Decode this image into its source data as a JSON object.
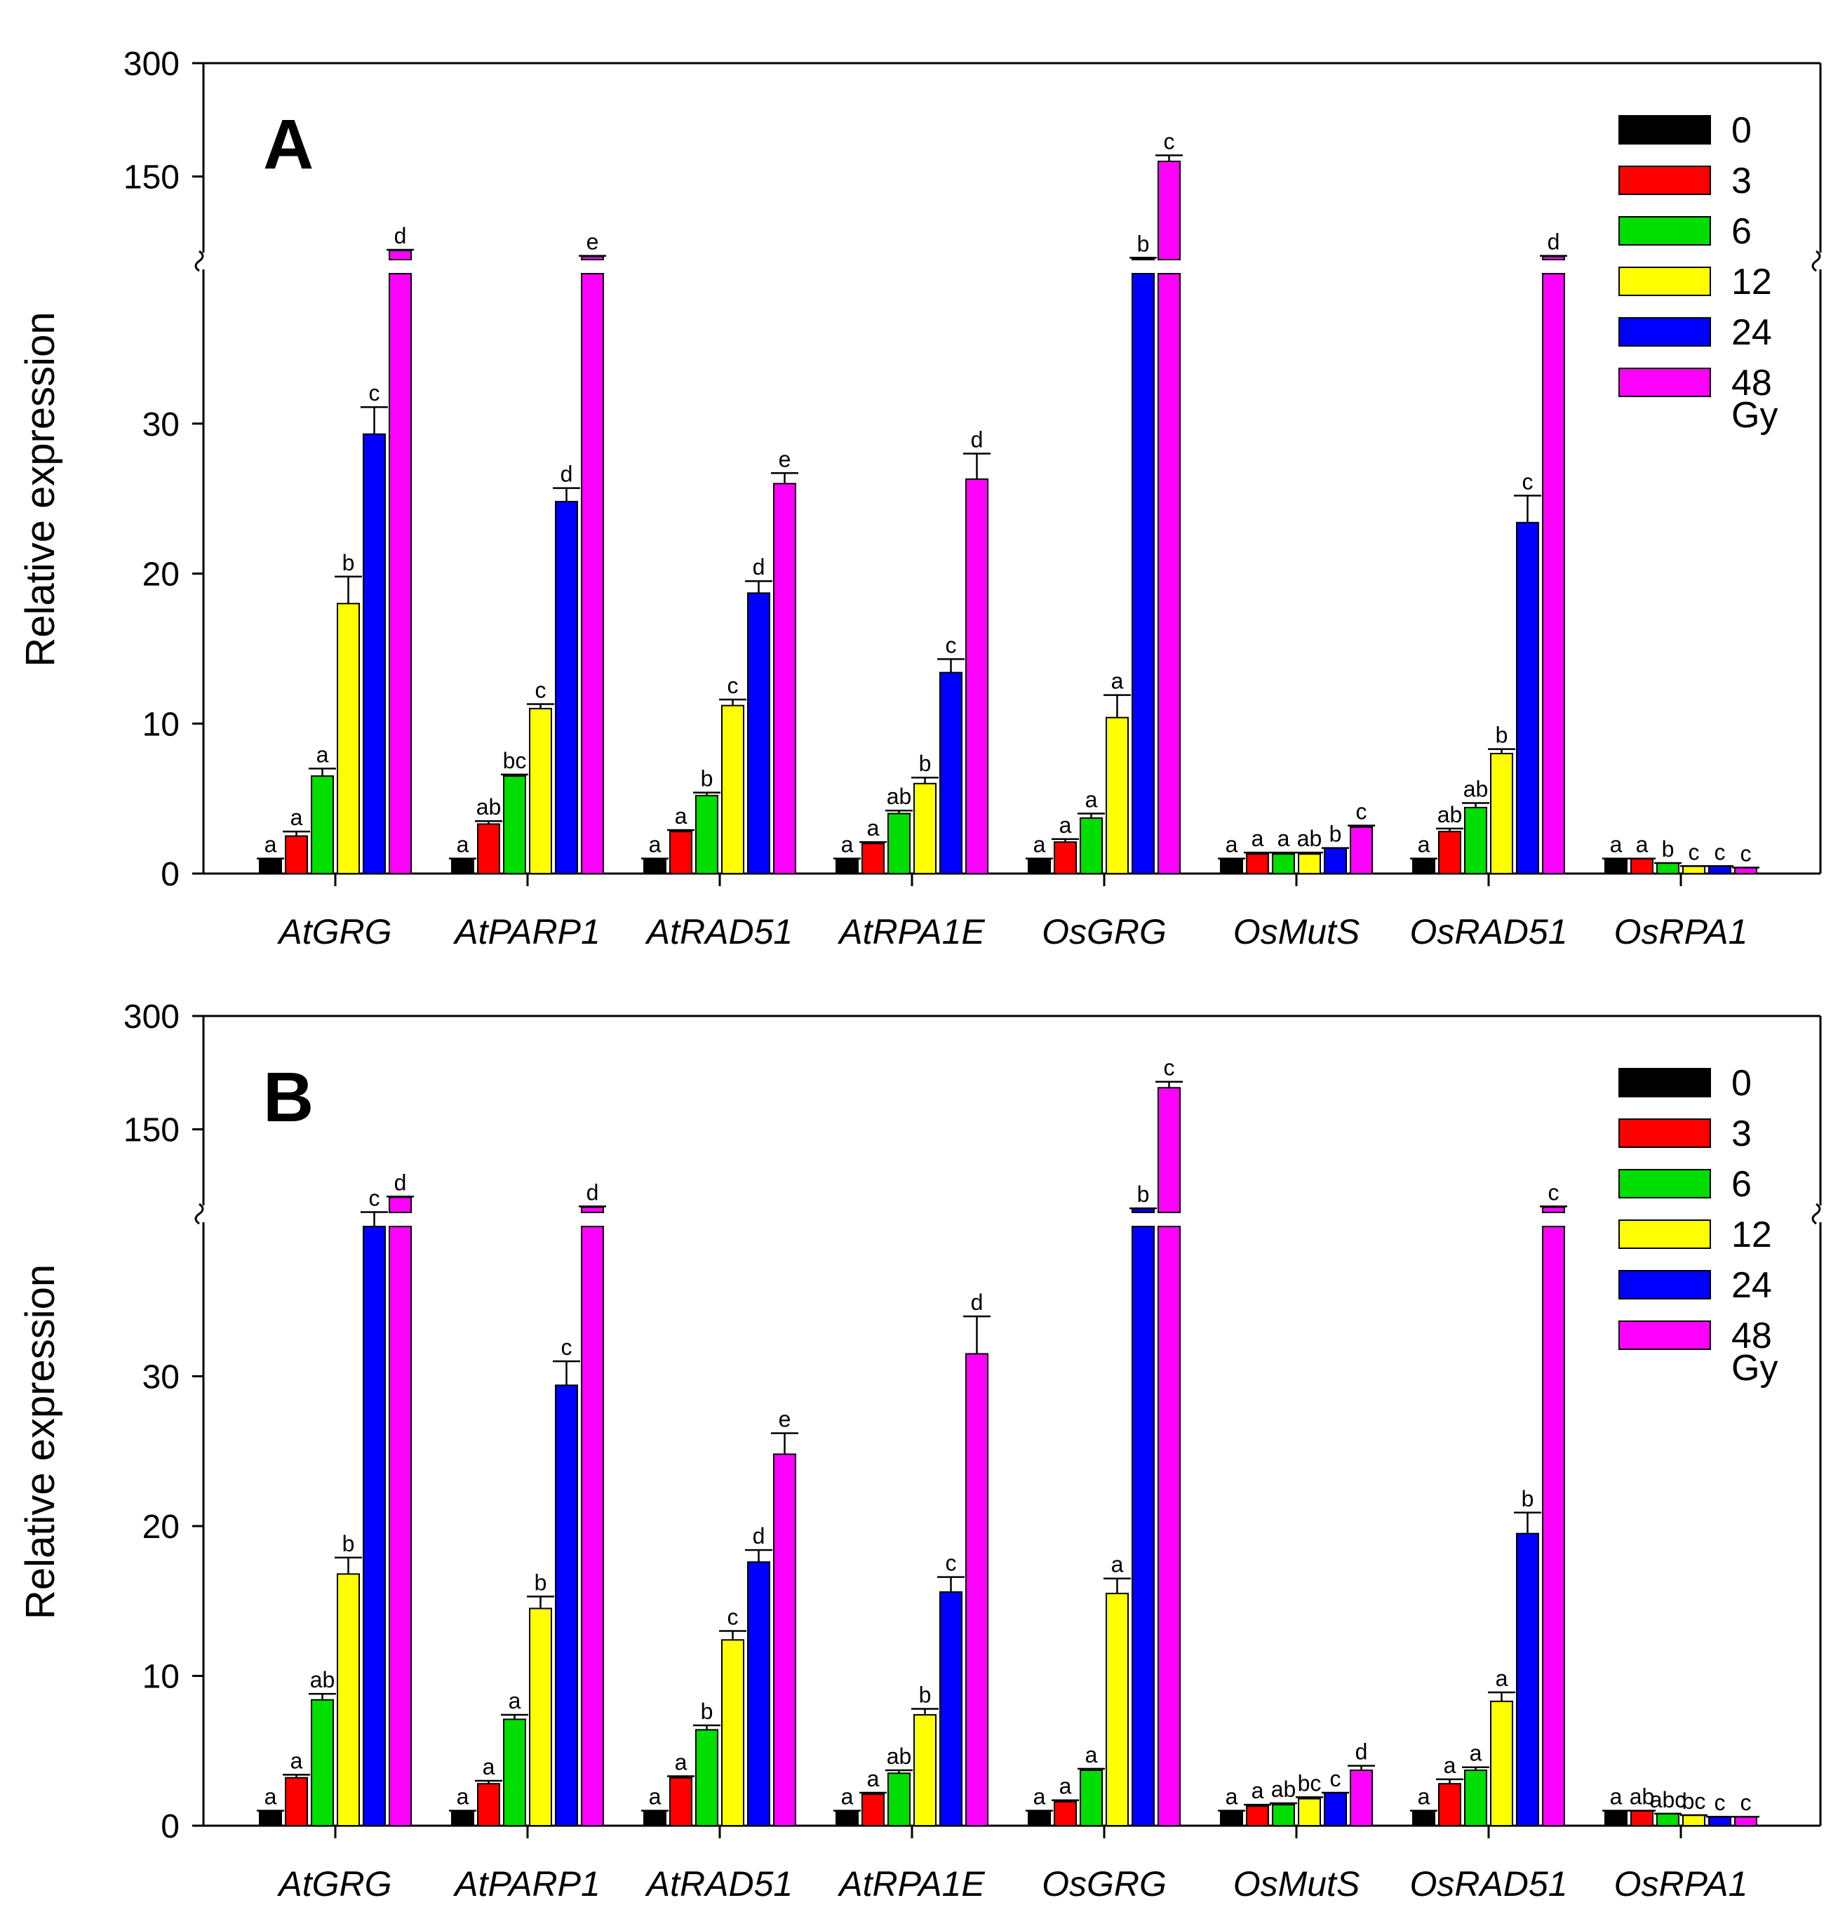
{
  "chart_data": [
    {
      "type": "bar",
      "panel_label": "A",
      "ylabel": "Relative expression",
      "xlabel": "",
      "axis_break": true,
      "lower_segment": {
        "range": [
          0,
          40
        ],
        "ticks": [
          "0",
          "10",
          "20",
          "30"
        ]
      },
      "upper_segment": {
        "range": [
          40,
          300
        ],
        "ticks": [
          "150",
          "300"
        ]
      },
      "categories": [
        "AtGRG",
        "AtPARP1",
        "AtRAD51",
        "AtRPA1E",
        "OsGRG",
        "OsMutS",
        "OsRAD51",
        "OsRPA1"
      ],
      "legend": {
        "title_suffix": "Gy",
        "entries": [
          "0",
          "3",
          "6",
          "12",
          "24",
          "48"
        ],
        "position": "top-right"
      },
      "series": [
        {
          "name": "0",
          "color": "#000000",
          "values": [
            1,
            1,
            1,
            1,
            1,
            1,
            1,
            1
          ],
          "errors": [
            0,
            0,
            0,
            0,
            0,
            0,
            0,
            0
          ],
          "letters": [
            "a",
            "a",
            "a",
            "a",
            "a",
            "a",
            "a",
            "a"
          ]
        },
        {
          "name": "3",
          "color": "#ff0000",
          "values": [
            2.5,
            3.3,
            2.8,
            2.0,
            2.1,
            1.3,
            2.8,
            1.0
          ],
          "errors": [
            0.3,
            0.2,
            0.1,
            0.1,
            0.2,
            0.1,
            0.2,
            0
          ],
          "letters": [
            "a",
            "ab",
            "a",
            "a",
            "a",
            "a",
            "ab",
            "a"
          ]
        },
        {
          "name": "6",
          "color": "#00dd00",
          "values": [
            6.5,
            6.5,
            5.2,
            4.0,
            3.7,
            1.3,
            4.4,
            0.7
          ],
          "errors": [
            0.5,
            0.1,
            0.2,
            0.2,
            0.3,
            0.1,
            0.3,
            0
          ],
          "letters": [
            "a",
            "bc",
            "b",
            "ab",
            "a",
            "a",
            "ab",
            "b"
          ]
        },
        {
          "name": "12",
          "color": "#ffff00",
          "values": [
            18.0,
            11.0,
            11.2,
            6.0,
            10.4,
            1.3,
            8.0,
            0.5
          ],
          "errors": [
            1.8,
            0.3,
            0.4,
            0.4,
            1.5,
            0.1,
            0.3,
            0
          ],
          "letters": [
            "b",
            "c",
            "c",
            "b",
            "a",
            "ab",
            "b",
            "c"
          ]
        },
        {
          "name": "24",
          "color": "#0000ff",
          "values": [
            29.3,
            24.8,
            18.7,
            13.4,
            42.0,
            1.7,
            23.4,
            0.5
          ],
          "errors": [
            1.8,
            0.9,
            0.8,
            0.9,
            0.5,
            0,
            1.8,
            0
          ],
          "letters": [
            "c",
            "d",
            "d",
            "c",
            "b",
            "b",
            "c",
            "c"
          ]
        },
        {
          "name": "48",
          "color": "#ff00ff",
          "values": [
            52.0,
            44.0,
            26.0,
            26.3,
            170.0,
            3.1,
            44.0,
            0.4
          ],
          "errors": [
            1.0,
            1.0,
            0.7,
            1.7,
            8.0,
            0.1,
            1.0,
            0
          ],
          "letters": [
            "d",
            "e",
            "e",
            "d",
            "c",
            "c",
            "d",
            "c"
          ]
        }
      ]
    },
    {
      "type": "bar",
      "panel_label": "B",
      "ylabel": "Relative expression",
      "xlabel": "",
      "axis_break": true,
      "lower_segment": {
        "range": [
          0,
          40
        ],
        "ticks": [
          "0",
          "10",
          "20",
          "30"
        ]
      },
      "upper_segment": {
        "range": [
          40,
          300
        ],
        "ticks": [
          "150",
          "300"
        ]
      },
      "categories": [
        "AtGRG",
        "AtPARP1",
        "AtRAD51",
        "AtRPA1E",
        "OsGRG",
        "OsMutS",
        "OsRAD51",
        "OsRPA1"
      ],
      "legend": {
        "title_suffix": "Gy",
        "entries": [
          "0",
          "3",
          "6",
          "12",
          "24",
          "48"
        ],
        "position": "top-right"
      },
      "series": [
        {
          "name": "0",
          "color": "#000000",
          "values": [
            1,
            1,
            1,
            1,
            1,
            1,
            1,
            1
          ],
          "errors": [
            0,
            0,
            0,
            0,
            0,
            0,
            0,
            0
          ],
          "letters": [
            "a",
            "a",
            "a",
            "a",
            "a",
            "a",
            "a",
            "a"
          ]
        },
        {
          "name": "3",
          "color": "#ff0000",
          "values": [
            3.2,
            2.8,
            3.2,
            2.1,
            1.6,
            1.3,
            2.8,
            1.0
          ],
          "errors": [
            0.2,
            0.2,
            0.1,
            0.1,
            0.1,
            0.1,
            0.3,
            0
          ],
          "letters": [
            "a",
            "a",
            "a",
            "a",
            "a",
            "a",
            "a",
            "ab"
          ]
        },
        {
          "name": "6",
          "color": "#00dd00",
          "values": [
            8.4,
            7.1,
            6.4,
            3.5,
            3.7,
            1.4,
            3.7,
            0.8
          ],
          "errors": [
            0.4,
            0.3,
            0.3,
            0.2,
            0.1,
            0.1,
            0.2,
            0
          ],
          "letters": [
            "ab",
            "a",
            "b",
            "ab",
            "a",
            "ab",
            "a",
            "abc"
          ]
        },
        {
          "name": "12",
          "color": "#ffff00",
          "values": [
            16.8,
            14.5,
            12.4,
            7.4,
            15.5,
            1.8,
            8.3,
            0.7
          ],
          "errors": [
            1.1,
            0.8,
            0.6,
            0.4,
            1.0,
            0.1,
            0.6,
            0
          ],
          "letters": [
            "b",
            "b",
            "c",
            "b",
            "a",
            "bc",
            "a",
            "bc"
          ]
        },
        {
          "name": "24",
          "color": "#0000ff",
          "values": [
            40.0,
            29.4,
            17.6,
            15.6,
            45.0,
            2.2,
            19.5,
            0.6
          ],
          "errors": [
            0.5,
            1.6,
            0.8,
            1.0,
            0.5,
            0,
            1.4,
            0
          ],
          "letters": [
            "c",
            "c",
            "d",
            "c",
            "b",
            "c",
            "b",
            "c"
          ]
        },
        {
          "name": "48",
          "color": "#ff00ff",
          "values": [
            60.0,
            47.0,
            24.8,
            31.5,
            205.0,
            3.7,
            47.0,
            0.6
          ],
          "errors": [
            1.0,
            1.0,
            1.4,
            2.5,
            8.0,
            0.3,
            1.0,
            0
          ],
          "letters": [
            "d",
            "d",
            "e",
            "d",
            "c",
            "d",
            "c",
            "c"
          ]
        }
      ]
    }
  ]
}
